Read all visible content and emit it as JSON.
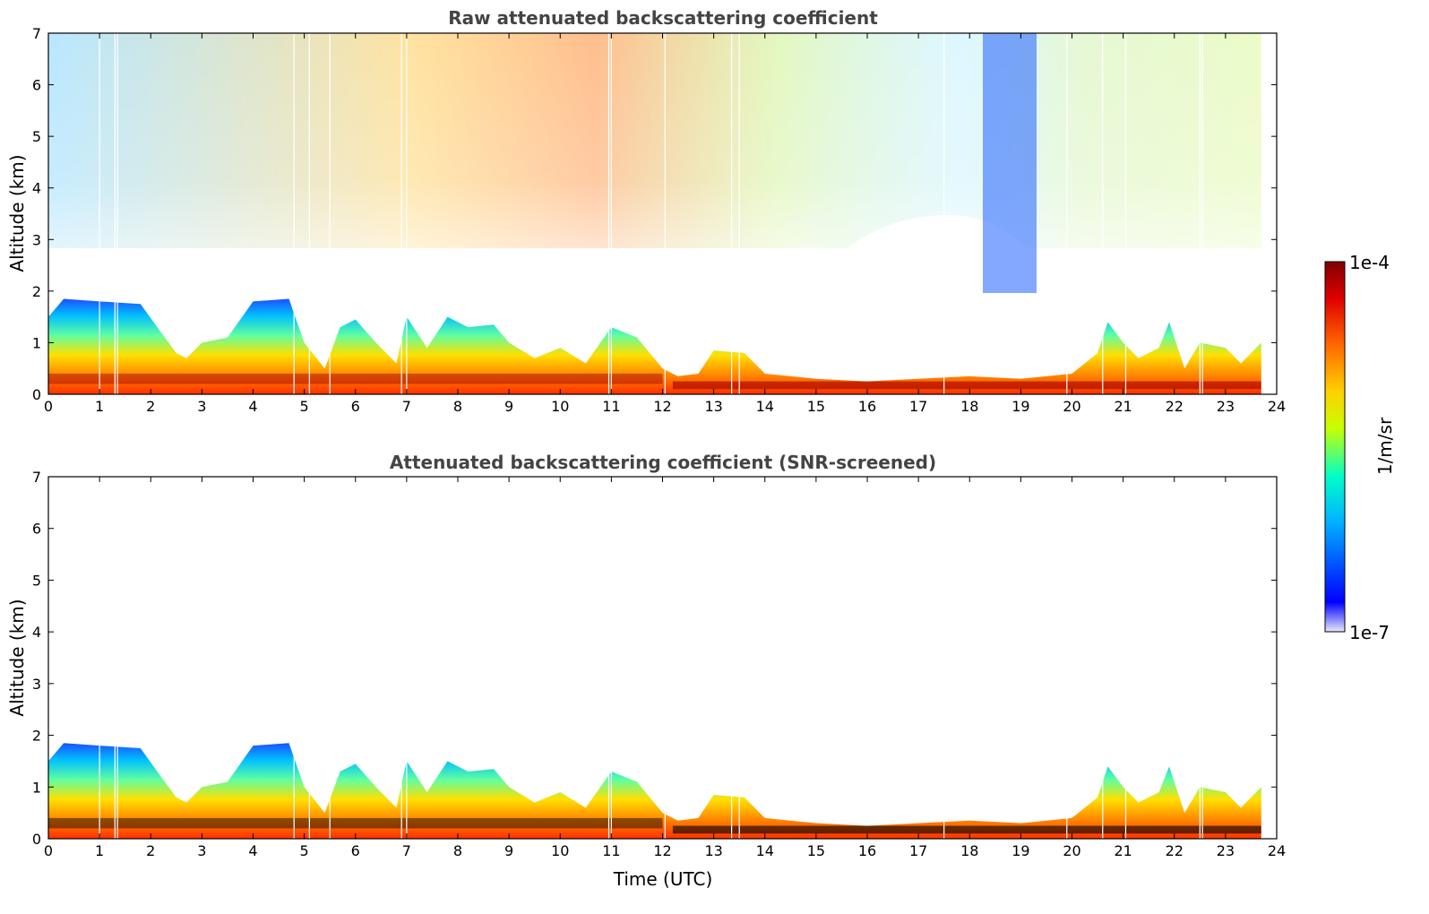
{
  "chart_data": [
    {
      "type": "heatmap",
      "title": "Raw attenuated backscattering coefficient",
      "xlabel": "",
      "ylabel": "Altitude (km)",
      "xlim": [
        0,
        24
      ],
      "ylim": [
        0,
        7
      ],
      "x_ticks": [
        "0",
        "1",
        "2",
        "3",
        "4",
        "5",
        "6",
        "7",
        "8",
        "9",
        "10",
        "11",
        "12",
        "13",
        "14",
        "15",
        "16",
        "17",
        "18",
        "19",
        "20",
        "21",
        "22",
        "23",
        "24"
      ],
      "y_ticks": [
        "0",
        "1",
        "2",
        "3",
        "4",
        "5",
        "6",
        "7"
      ],
      "data_end_time": 23.7,
      "boundary_layer_top_km": [
        [
          0,
          1.5
        ],
        [
          0.3,
          1.85
        ],
        [
          1,
          1.8
        ],
        [
          1.8,
          1.75
        ],
        [
          2.2,
          1.2
        ],
        [
          2.5,
          0.8
        ],
        [
          2.7,
          0.7
        ],
        [
          3,
          1.0
        ],
        [
          3.5,
          1.1
        ],
        [
          4,
          1.8
        ],
        [
          4.7,
          1.85
        ],
        [
          5,
          1.0
        ],
        [
          5.4,
          0.5
        ],
        [
          5.7,
          1.3
        ],
        [
          6,
          1.45
        ],
        [
          6.4,
          1.0
        ],
        [
          6.8,
          0.6
        ],
        [
          7,
          1.5
        ],
        [
          7.4,
          0.9
        ],
        [
          7.8,
          1.5
        ],
        [
          8.2,
          1.3
        ],
        [
          8.7,
          1.35
        ],
        [
          9,
          1.0
        ],
        [
          9.5,
          0.7
        ],
        [
          10,
          0.9
        ],
        [
          10.5,
          0.6
        ],
        [
          11,
          1.3
        ],
        [
          11.5,
          1.1
        ],
        [
          12,
          0.5
        ],
        [
          12.3,
          0.35
        ],
        [
          12.7,
          0.4
        ],
        [
          13,
          0.85
        ],
        [
          13.6,
          0.8
        ],
        [
          14,
          0.4
        ],
        [
          15,
          0.3
        ],
        [
          16,
          0.25
        ],
        [
          17,
          0.3
        ],
        [
          18,
          0.35
        ],
        [
          19,
          0.3
        ],
        [
          20,
          0.4
        ],
        [
          20.5,
          0.8
        ],
        [
          20.7,
          1.4
        ],
        [
          21,
          1.0
        ],
        [
          21.3,
          0.7
        ],
        [
          21.7,
          0.9
        ],
        [
          21.9,
          1.4
        ],
        [
          22.2,
          0.5
        ],
        [
          22.5,
          1.0
        ],
        [
          23,
          0.9
        ],
        [
          23.3,
          0.6
        ],
        [
          23.7,
          1.0
        ]
      ]
    },
    {
      "type": "heatmap",
      "title": "Attenuated backscattering coefficient (SNR-screened)",
      "xlabel": "Time (UTC)",
      "ylabel": "Altitude (km)",
      "xlim": [
        0,
        24
      ],
      "ylim": [
        0,
        7
      ],
      "x_ticks": [
        "0",
        "1",
        "2",
        "3",
        "4",
        "5",
        "6",
        "7",
        "8",
        "9",
        "10",
        "11",
        "12",
        "13",
        "14",
        "15",
        "16",
        "17",
        "18",
        "19",
        "20",
        "21",
        "22",
        "23",
        "24"
      ],
      "y_ticks": [
        "0",
        "1",
        "2",
        "3",
        "4",
        "5",
        "6",
        "7"
      ],
      "data_end_time": 23.7
    }
  ],
  "colorbar": {
    "label": "1/m/sr",
    "max_label": "1e-4",
    "min_label": "1e-7",
    "min": 1e-07,
    "max": 0.0001,
    "scale": "log",
    "colormap": "jet",
    "colors": [
      "#e8e8f8",
      "#0000ff",
      "#00b4ff",
      "#00ffc8",
      "#c8ff00",
      "#ffd000",
      "#ff6400",
      "#e00000",
      "#800000"
    ]
  }
}
